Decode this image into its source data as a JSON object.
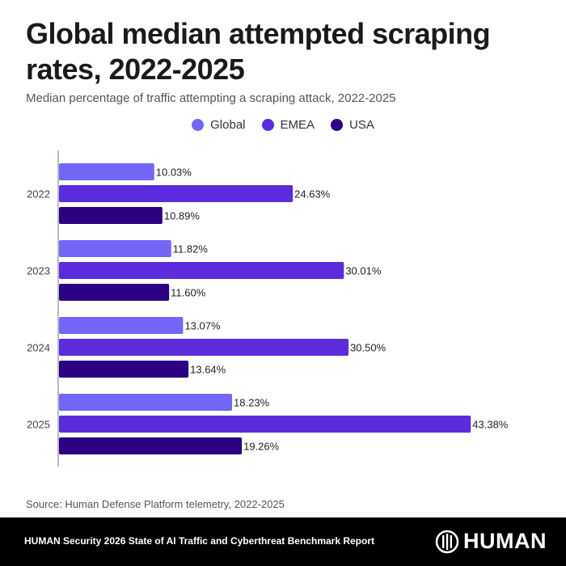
{
  "header": {
    "title": "Global median attempted scraping rates, 2022-2025",
    "subtitle": "Median percentage of traffic attempting a scraping attack, 2022-2025"
  },
  "legend": [
    {
      "label": "Global",
      "color": "#7466f7"
    },
    {
      "label": "EMEA",
      "color": "#5a2cdc"
    },
    {
      "label": "USA",
      "color": "#2b0082"
    }
  ],
  "chart_data": {
    "type": "bar",
    "orientation": "horizontal",
    "title": "Global median attempted scraping rates, 2022-2025",
    "subtitle": "Median percentage of traffic attempting a scraping attack, 2022-2025",
    "xlabel": "",
    "ylabel": "",
    "categories": [
      "2022",
      "2023",
      "2024",
      "2025"
    ],
    "series": [
      {
        "name": "Global",
        "color": "#7466f7",
        "values": [
          10.03,
          11.82,
          13.07,
          18.23
        ],
        "labels": [
          "10.03%",
          "11.82%",
          "13.07%",
          "18.23%"
        ]
      },
      {
        "name": "EMEA",
        "color": "#5a2cdc",
        "values": [
          24.63,
          30.01,
          30.5,
          43.38
        ],
        "labels": [
          "24.63%",
          "30.01%",
          "30.50%",
          "43.38%"
        ]
      },
      {
        "name": "USA",
        "color": "#2b0082",
        "values": [
          10.89,
          11.6,
          13.64,
          19.26
        ],
        "labels": [
          "10.89%",
          "11.60%",
          "13.64%",
          "19.26%"
        ]
      }
    ],
    "xlim": [
      0,
      45
    ],
    "grid": false,
    "legend_position": "top-center",
    "value_suffix": "%"
  },
  "source": "Source: Human Defense Platform telemetry, 2022-2025",
  "footer": {
    "report": "HUMAN Security 2026 State of AI Traffic and Cyberthreat Benchmark Report",
    "logo_text": "HUMAN"
  }
}
